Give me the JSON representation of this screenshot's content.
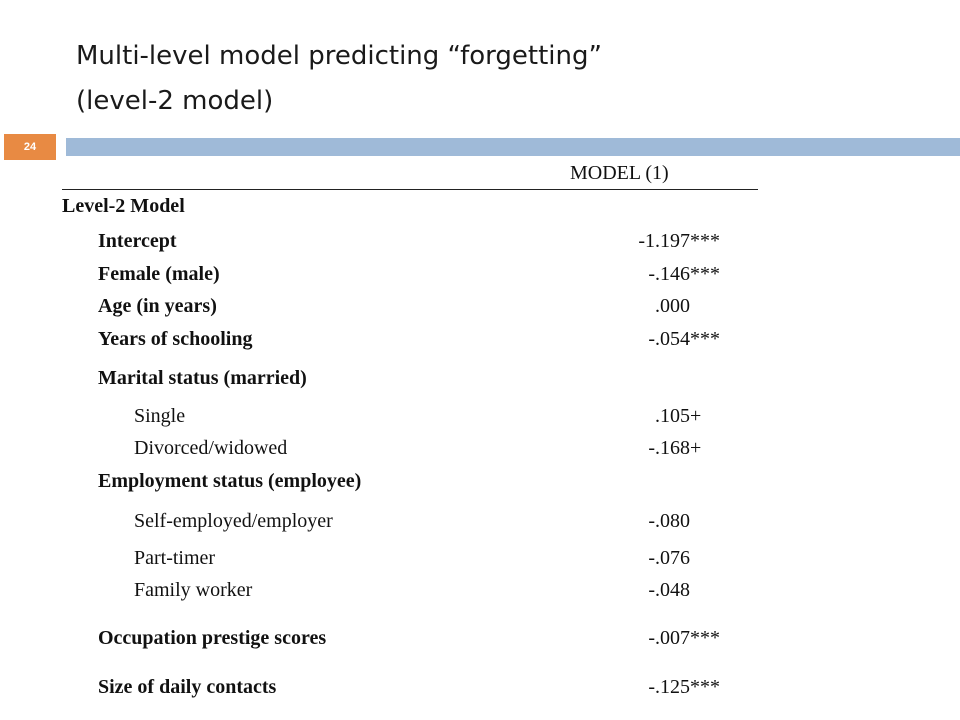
{
  "slide": {
    "title_line1": "Multi-level model predicting “forgetting”",
    "title_line2": "(level-2 model)",
    "number": "24"
  },
  "table": {
    "column_header": "MODEL (1)",
    "section_label": "Level-2 Model",
    "rows": [
      {
        "label": "Intercept",
        "value": "-1.197",
        "sig": "***"
      },
      {
        "label": "Female (male)",
        "value": "-.146",
        "sig": "***"
      },
      {
        "label": "Age (in years)",
        "value": ".000",
        "sig": ""
      },
      {
        "label": "Years of schooling",
        "value": "-.054",
        "sig": "***"
      },
      {
        "label": "Marital status (married)",
        "value": "",
        "sig": ""
      },
      {
        "label": "Single",
        "value": ".105",
        "sig": "+"
      },
      {
        "label": "Divorced/widowed",
        "value": "-.168",
        "sig": "+"
      },
      {
        "label": "Employment status (employee)",
        "value": "",
        "sig": ""
      },
      {
        "label": "Self-employed/employer",
        "value": "-.080",
        "sig": ""
      },
      {
        "label": "Part-timer",
        "value": "-.076",
        "sig": ""
      },
      {
        "label": "Family worker",
        "value": "-.048",
        "sig": ""
      },
      {
        "label": "Occupation prestige scores",
        "value": "-.007",
        "sig": "***"
      },
      {
        "label": "Size of daily contacts",
        "value": "-.125",
        "sig": "***"
      }
    ]
  },
  "colors": {
    "band": "#9fbad8",
    "slide_number_bg": "#e88a43"
  }
}
